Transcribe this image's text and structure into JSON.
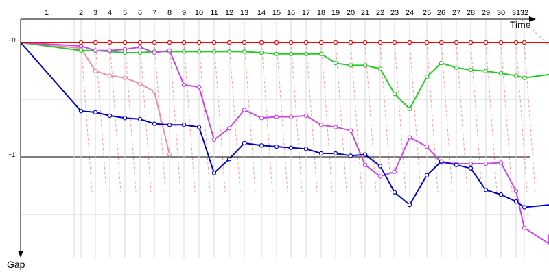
{
  "chart_data": {
    "type": "line",
    "xlabel": "Time",
    "ylabel": "Gap",
    "y_tick_labels": [
      "+0'",
      "+1'"
    ],
    "laps": [
      "1",
      "2",
      "3",
      "4",
      "5",
      "6",
      "7",
      "8",
      "9",
      "10",
      "11",
      "12",
      "13",
      "14",
      "15",
      "16",
      "17",
      "18",
      "19",
      "20",
      "21",
      "22",
      "23",
      "24",
      "25",
      "26",
      "27",
      "28",
      "29",
      "30",
      "31",
      "32"
    ],
    "series": [
      {
        "color": "#ff0000",
        "values": [
          0,
          0,
          0,
          0,
          0,
          0,
          0,
          0,
          0,
          0,
          0,
          0,
          0,
          0,
          0,
          0,
          0,
          0,
          0,
          0,
          0,
          0,
          0,
          0,
          0,
          0,
          0,
          0,
          0,
          0,
          0,
          0
        ]
      },
      {
        "color": "#22cc22",
        "values": [
          0.07,
          0.07,
          0.08,
          0.09,
          0.09,
          0.08,
          0.08,
          0.08,
          0.08,
          0.08,
          0.08,
          0.08,
          0.09,
          0.1,
          0.1,
          0.1,
          0.1,
          0.18,
          0.2,
          0.2,
          0.23,
          0.45,
          0.58,
          0.3,
          0.18,
          0.22,
          0.24,
          0.25,
          0.27,
          0.29,
          0.31,
          0.28
        ]
      },
      {
        "color": "#cc44ee",
        "values": [
          0.03,
          0.07,
          0.07,
          0.06,
          0.04,
          0.09,
          0.07,
          0.37,
          0.39,
          0.85,
          0.75,
          0.59,
          0.66,
          0.65,
          0.65,
          0.64,
          0.72,
          0.74,
          0.77,
          1.07,
          1.17,
          1.13,
          0.83,
          0.91,
          1.05,
          1.06,
          1.06,
          1.06,
          1.05,
          1.3,
          1.62,
          1.76
        ]
      },
      {
        "color": "#f08aab",
        "values": [
          0.05,
          0.25,
          0.29,
          0.31,
          0.36,
          0.43,
          0.98
        ]
      },
      {
        "color": "#0000cc",
        "values": [
          0.6,
          0.61,
          0.64,
          0.66,
          0.67,
          0.71,
          0.72,
          0.72,
          0.74,
          1.14,
          1.02,
          0.88,
          0.9,
          0.91,
          0.92,
          0.93,
          0.97,
          0.97,
          0.99,
          0.98,
          1.08,
          1.31,
          1.42,
          1.16,
          1.04,
          1.07,
          1.1,
          1.29,
          1.33,
          1.39,
          1.44
        ]
      }
    ]
  }
}
